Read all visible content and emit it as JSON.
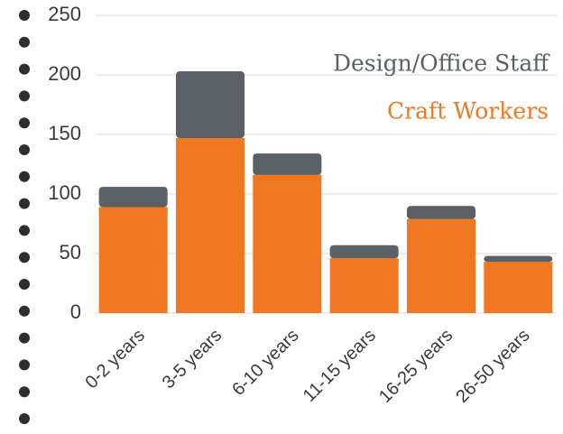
{
  "chart_data": {
    "type": "stacked_bar",
    "categories": [
      "0-2 years",
      "3-5 years",
      "6-10 years",
      "11-15 years",
      "16-25 years",
      "26-50 years"
    ],
    "series": [
      {
        "name": "Design/Office Staff",
        "color": "#5a6066",
        "values": [
          17,
          56,
          18,
          11,
          11,
          5
        ]
      },
      {
        "name": "Craft Workers",
        "color": "#f07822",
        "values": [
          89,
          147,
          116,
          46,
          79,
          43
        ]
      }
    ],
    "ylim": [
      0,
      250
    ],
    "yticks": [
      0,
      50,
      100,
      150,
      200,
      250
    ],
    "grid": true,
    "legend": "upper right"
  }
}
